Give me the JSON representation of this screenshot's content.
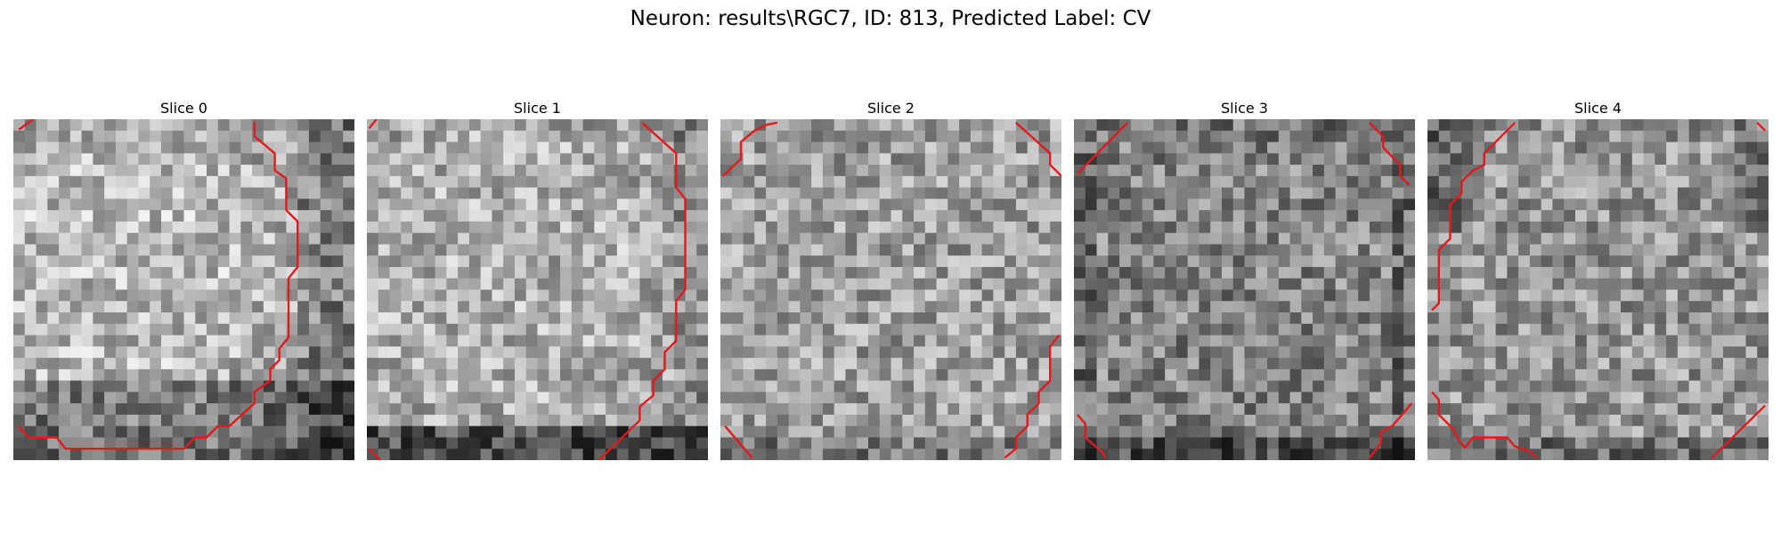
{
  "figure": {
    "title": "Neuron: results\\RGC7, ID: 813, Predicted Label: CV",
    "contour_color": "#e31a1c"
  },
  "slices": [
    {
      "title": "Slice 0"
    },
    {
      "title": "Slice 1"
    },
    {
      "title": "Slice 2"
    },
    {
      "title": "Slice 3"
    },
    {
      "title": "Slice 4"
    }
  ]
}
